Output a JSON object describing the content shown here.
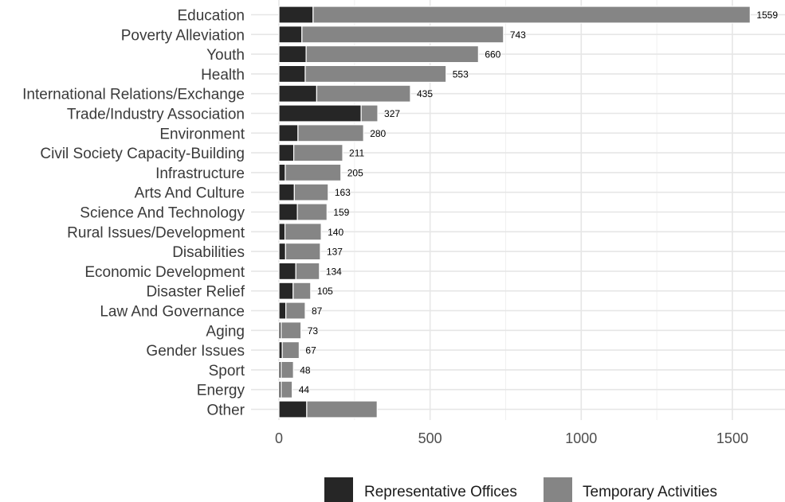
{
  "chart_data": {
    "type": "bar",
    "orientation": "horizontal",
    "stacked": true,
    "title": "",
    "xlabel": "",
    "ylabel": "",
    "xlim": [
      0,
      1650
    ],
    "x_ticks": [
      0,
      500,
      1000,
      1500
    ],
    "x_tick_labels": [
      "0",
      "500",
      "1000",
      "1500"
    ],
    "grid": true,
    "legend_position": "bottom",
    "categories": [
      "Education",
      "Poverty Alleviation",
      "Youth",
      "Health",
      "International Relations/Exchange",
      "Trade/Industry Association",
      "Environment",
      "Civil Society Capacity-Building",
      "Infrastructure",
      "Arts And Culture",
      "Science And Technology",
      "Rural Issues/Development",
      "Disabilities",
      "Economic Development",
      "Disaster Relief",
      "Law And Governance",
      "Aging",
      "Gender Issues",
      "Sport",
      "Energy",
      "Other"
    ],
    "totals": [
      1559,
      743,
      660,
      553,
      435,
      327,
      280,
      211,
      205,
      163,
      159,
      140,
      137,
      134,
      105,
      87,
      73,
      67,
      48,
      44,
      null
    ],
    "total_labels": [
      "1559",
      "743",
      "660",
      "553",
      "435",
      "327",
      "280",
      "211",
      "205",
      "163",
      "159",
      "140",
      "137",
      "134",
      "105",
      "87",
      "73",
      "67",
      "48",
      "44",
      ""
    ],
    "series": [
      {
        "name": "Representative Offices",
        "color": "#262626",
        "values": [
          113,
          76,
          90,
          87,
          125,
          272,
          63,
          49,
          21,
          51,
          61,
          20,
          22,
          56,
          47,
          23,
          7,
          11,
          7,
          7,
          92
        ]
      },
      {
        "name": "Temporary Activities",
        "color": "#858585",
        "values": [
          1446,
          667,
          570,
          466,
          310,
          55,
          217,
          162,
          184,
          112,
          98,
          120,
          115,
          78,
          58,
          64,
          66,
          56,
          41,
          37,
          233
        ]
      }
    ]
  }
}
